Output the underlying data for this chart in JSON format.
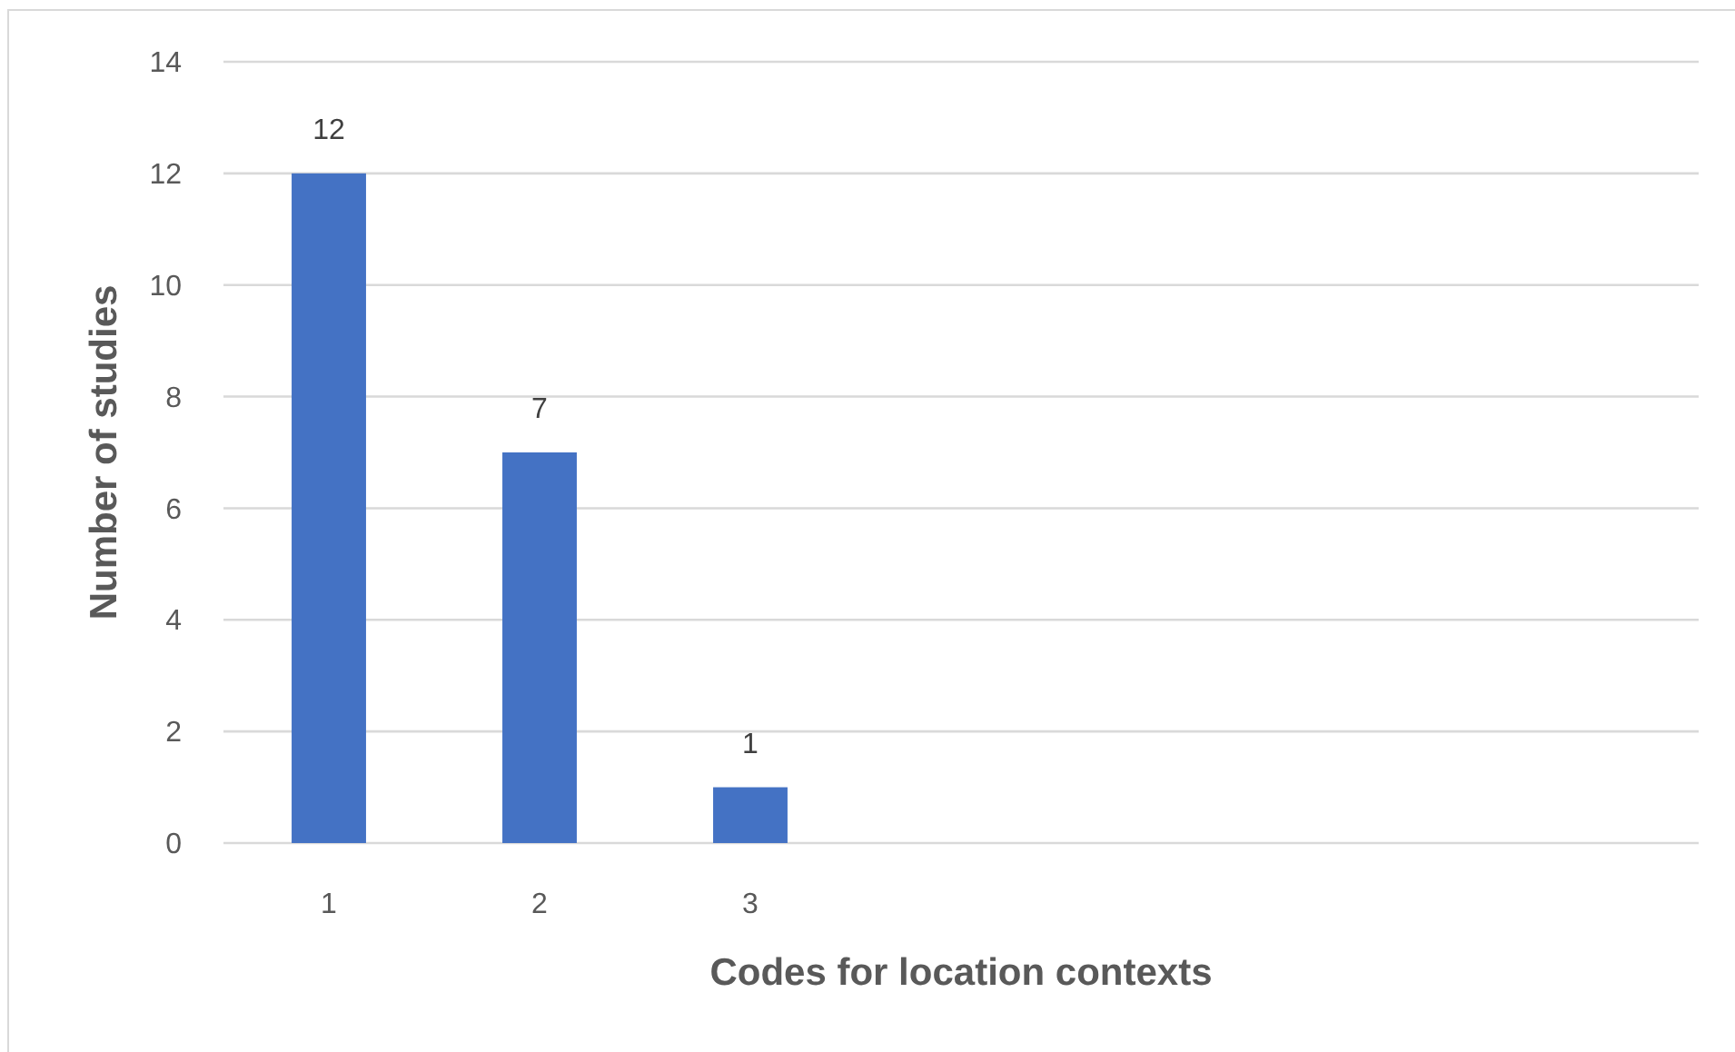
{
  "chart_data": {
    "type": "bar",
    "xlabel": "Codes for location contexts",
    "ylabel": "Number of studies",
    "categories": [
      "1",
      "2",
      "3",
      null,
      null,
      null,
      null
    ],
    "values": [
      12,
      7,
      1,
      null,
      null,
      null,
      null
    ],
    "color": "#4472c4",
    "ylim": [
      0,
      14
    ],
    "yticks": [
      0,
      2,
      4,
      6,
      8,
      10,
      12,
      14
    ],
    "grid": "y",
    "data_labels": true
  }
}
